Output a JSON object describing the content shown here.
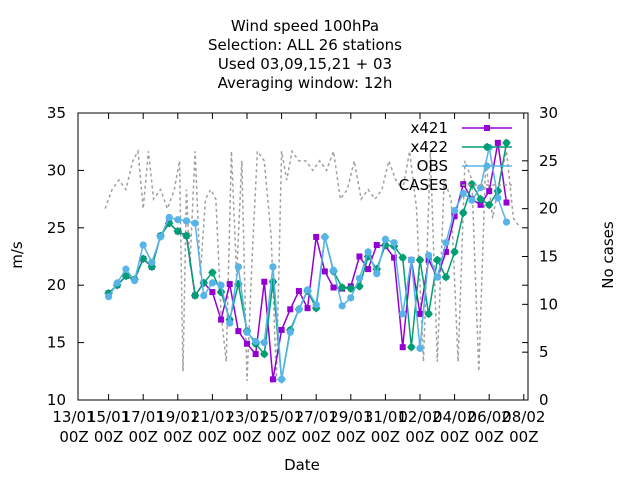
{
  "chart_data": {
    "type": "line",
    "title": [
      "Wind speed 100hPa",
      "Selection: ALL      26 stations",
      "Used  03,09,15,21 + 03",
      "Averaging window: 12h"
    ],
    "xlabel": "Date",
    "ylabel": "m/s",
    "y2label": "No cases",
    "xlim": [
      0,
      16
    ],
    "ylim": [
      10,
      35
    ],
    "y2lim": [
      0,
      30
    ],
    "x_ticks": [
      {
        "x": 0,
        "line1": "13/01",
        "line2": "00Z"
      },
      {
        "x": 1,
        "line1": "15/01",
        "line2": "00Z"
      },
      {
        "x": 2,
        "line1": "17/01",
        "line2": "00Z"
      },
      {
        "x": 3,
        "line1": "19/01",
        "line2": "00Z"
      },
      {
        "x": 4,
        "line1": "21/01",
        "line2": "00Z"
      },
      {
        "x": 5,
        "line1": "23/01",
        "line2": "00Z"
      },
      {
        "x": 6,
        "line1": "25/01",
        "line2": "00Z"
      },
      {
        "x": 7,
        "line1": "27/01",
        "line2": "00Z"
      },
      {
        "x": 8,
        "line1": "29/01",
        "line2": "00Z"
      },
      {
        "x": 9,
        "line1": "31/01",
        "line2": "00Z"
      },
      {
        "x": 10,
        "line1": "02/02",
        "line2": "00Z"
      },
      {
        "x": 11,
        "line1": "04/02",
        "line2": "00Z"
      },
      {
        "x": 12,
        "line1": "06/02",
        "line2": "00Z"
      },
      {
        "x": 13,
        "line1": "08/02",
        "line2": "00Z"
      }
    ],
    "y_ticks": [
      10,
      15,
      20,
      25,
      30,
      35
    ],
    "y2_ticks": [
      0,
      5,
      10,
      15,
      20,
      25,
      30
    ],
    "x": [
      1.0,
      1.25,
      1.5,
      1.75,
      2.0,
      2.25,
      2.5,
      2.75,
      3.0,
      3.25,
      3.5,
      3.75,
      4.0,
      4.25,
      4.5,
      4.75,
      5.0,
      5.25,
      5.5,
      5.75,
      6.0,
      6.25,
      6.5,
      6.75,
      7.0,
      7.25,
      7.5,
      7.75,
      8.0,
      8.25,
      8.5,
      8.75,
      9.0,
      9.25,
      9.5,
      9.75,
      10.0,
      10.25,
      10.5,
      10.75,
      11.0,
      11.25,
      11.5,
      11.75,
      12.0,
      12.25,
      12.5
    ],
    "series": [
      {
        "name": "x421",
        "color": "#9400d3",
        "marker": "square",
        "values": [
          19.3,
          20.0,
          20.8,
          20.5,
          22.3,
          21.6,
          24.3,
          25.4,
          24.7,
          24.3,
          19.1,
          20.2,
          19.4,
          17.0,
          20.1,
          16.0,
          14.9,
          14.0,
          20.3,
          11.8,
          16.1,
          17.9,
          19.5,
          18.0,
          24.2,
          21.2,
          19.8,
          19.7,
          19.9,
          22.5,
          21.4,
          23.5,
          23.4,
          22.4,
          14.6,
          22.2,
          17.5,
          22.2,
          20.7,
          22.9,
          26.0,
          28.8,
          27.5,
          27.0,
          28.2,
          32.4,
          27.2
        ]
      },
      {
        "name": "x422",
        "color": "#009e73",
        "marker": "star",
        "values": [
          19.3,
          20.0,
          20.8,
          20.5,
          22.3,
          21.6,
          24.3,
          25.4,
          24.7,
          24.3,
          19.1,
          20.2,
          21.1,
          19.4,
          17.0,
          20.1,
          16.0,
          14.9,
          14.0,
          20.3,
          11.8,
          16.1,
          17.9,
          19.5,
          18.0,
          24.2,
          21.2,
          19.8,
          19.7,
          19.9,
          22.5,
          21.4,
          23.5,
          23.4,
          22.4,
          14.6,
          22.2,
          17.5,
          22.2,
          20.7,
          22.9,
          26.3,
          28.8,
          27.5,
          27.0,
          28.2,
          32.4
        ]
      },
      {
        "name": "OBS",
        "color": "#56b4e9",
        "marker": "circle",
        "values": [
          19.0,
          20.2,
          21.4,
          20.4,
          23.5,
          22.0,
          24.2,
          25.9,
          25.7,
          25.6,
          25.4,
          19.1,
          20.2,
          20.0,
          16.7,
          21.6,
          15.9,
          15.1,
          15.0,
          21.6,
          11.8,
          15.9,
          17.9,
          19.6,
          18.3,
          24.2,
          21.3,
          18.2,
          18.9,
          20.6,
          22.9,
          21.0,
          24.0,
          23.7,
          17.5,
          22.2,
          14.5,
          22.6,
          20.7,
          23.7,
          26.5,
          28.0,
          27.4,
          28.5,
          32.0,
          27.6,
          25.5
        ]
      },
      {
        "name": "CASES",
        "color": "#a0a0a0",
        "marker": "none",
        "axis": "y2",
        "style": "dotted",
        "x": [
          0.9,
          1.1,
          1.3,
          1.5,
          1.7,
          1.85,
          2.0,
          2.15,
          2.3,
          2.5,
          2.7,
          2.9,
          3.05,
          3.15,
          3.25,
          3.35,
          3.5,
          3.65,
          3.8,
          3.95,
          4.1,
          4.25,
          4.4,
          4.55,
          4.7,
          4.85,
          5.0,
          5.15,
          5.3,
          5.5,
          5.7,
          5.85,
          6.0,
          6.15,
          6.3,
          6.5,
          6.7,
          6.9,
          7.1,
          7.3,
          7.5,
          7.7,
          7.9,
          8.1,
          8.3,
          8.5,
          8.7,
          8.9,
          9.1,
          9.3,
          9.5,
          9.7,
          9.9,
          10.1,
          10.3,
          10.5,
          10.7,
          10.9,
          11.1,
          11.3,
          11.5,
          11.7,
          11.9,
          12.1,
          12.3,
          12.5,
          12.7,
          12.9
        ],
        "values": [
          20,
          22,
          23,
          22,
          25,
          26,
          20,
          26,
          21,
          22,
          20,
          22,
          25,
          3,
          22,
          14,
          26,
          13,
          21,
          22,
          21,
          9,
          4,
          26,
          13,
          25,
          2,
          15,
          26,
          25,
          17,
          2,
          26,
          23,
          26,
          25,
          25,
          24,
          25,
          24,
          26,
          21,
          22,
          25,
          21,
          22,
          21,
          22,
          25,
          23,
          22,
          26,
          20,
          4,
          26,
          4,
          23,
          21,
          4,
          25,
          23,
          3,
          25,
          19,
          23,
          26,
          19,
          18
        ]
      }
    ],
    "legend": {
      "placement": "top-right",
      "entries": [
        "x421",
        "x422",
        "OBS",
        "CASES"
      ]
    }
  }
}
